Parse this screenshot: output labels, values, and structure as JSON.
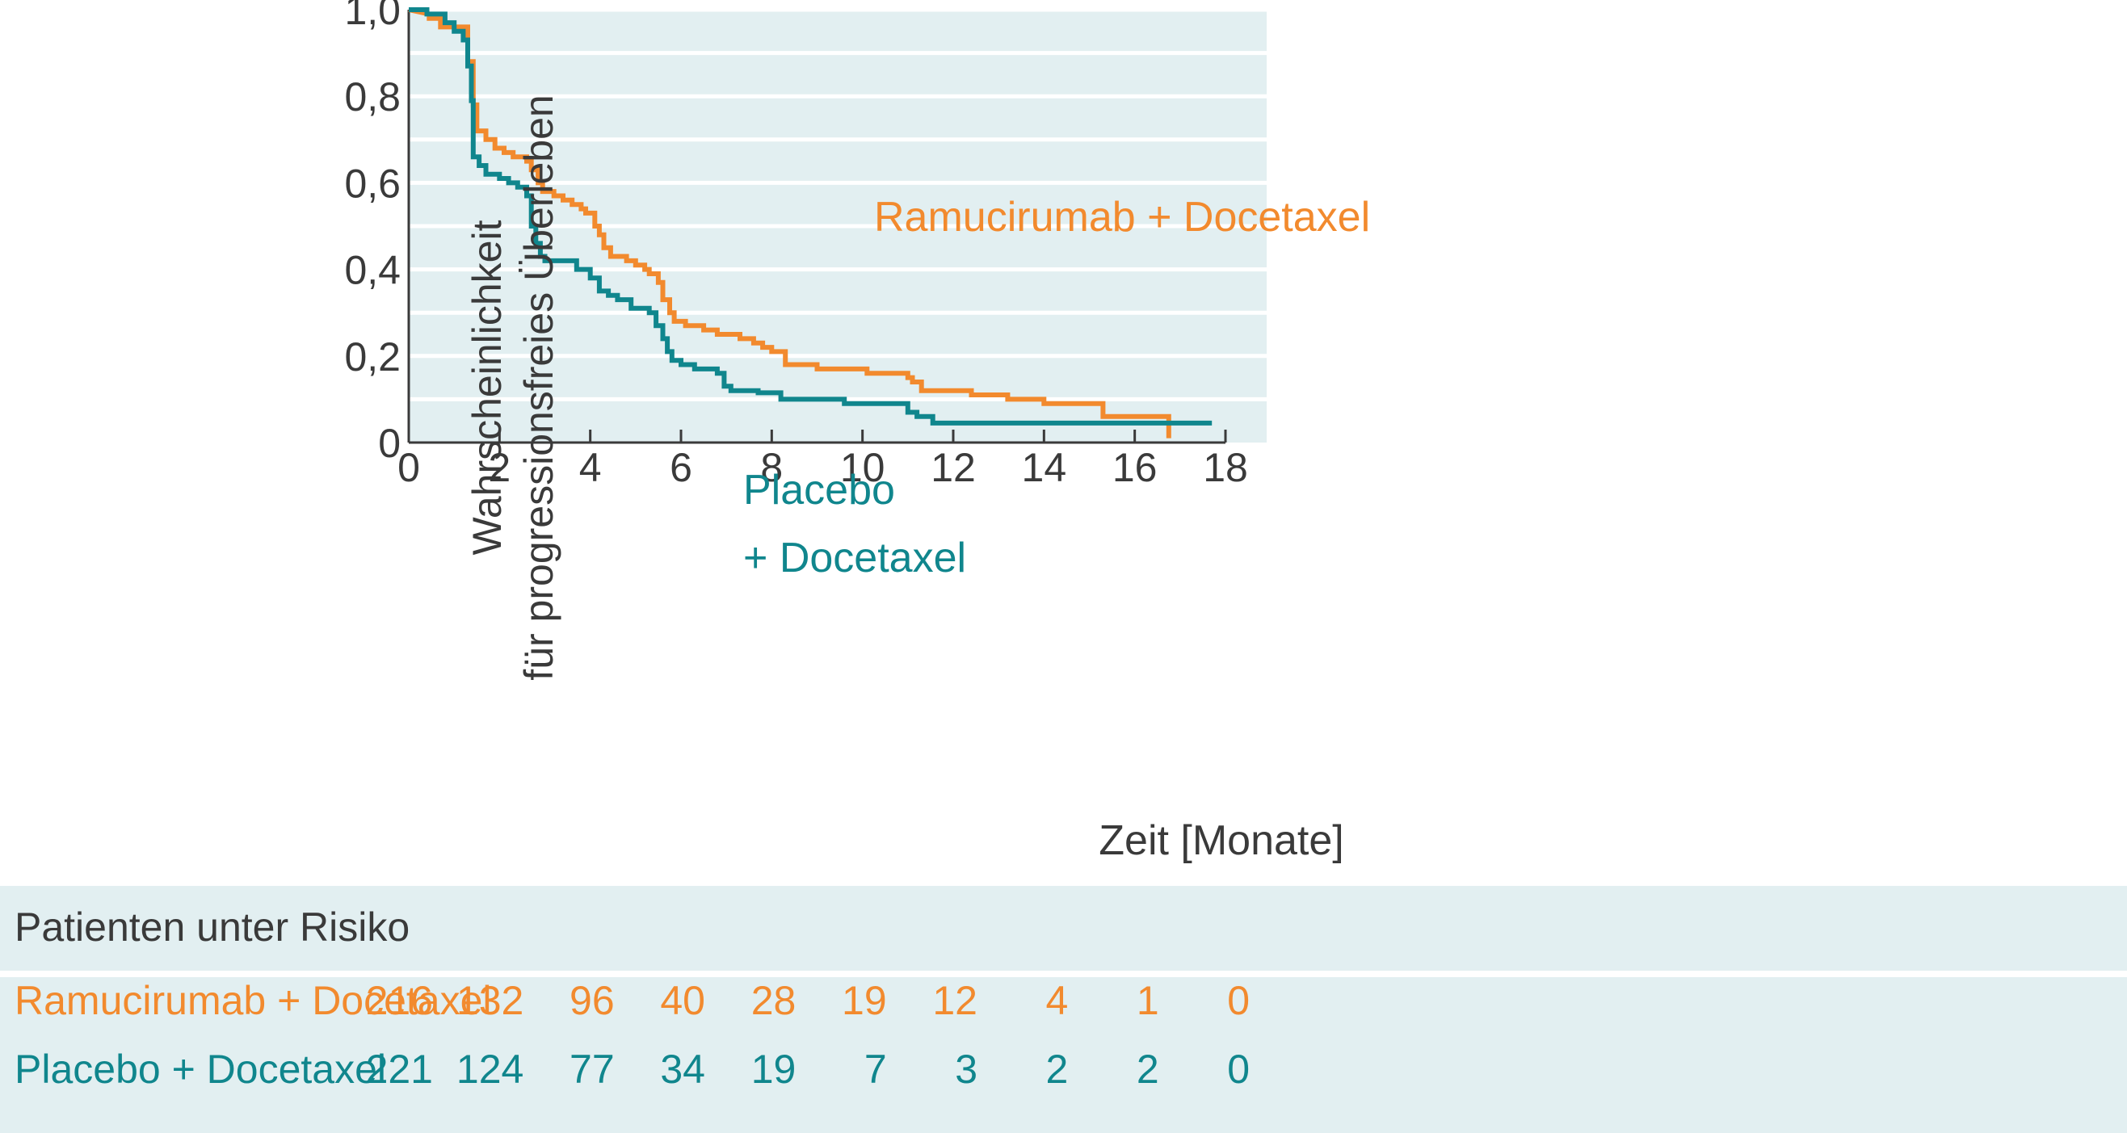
{
  "chart_data": {
    "type": "line",
    "subtype": "kaplan-meier step",
    "title": "",
    "xlabel": "Zeit [Monate]",
    "ylabel_lines": [
      "Wahrscheinlichkeit",
      "für progressionsfreies Überleben"
    ],
    "xlim": [
      0,
      18
    ],
    "ylim": [
      0,
      1.0
    ],
    "x_ticks": [
      0,
      2,
      4,
      6,
      8,
      10,
      12,
      14,
      16,
      18
    ],
    "y_ticks": [
      0,
      0.2,
      0.4,
      0.6,
      0.8,
      1.0
    ],
    "y_tick_labels": [
      "0",
      "0,2",
      "0,4",
      "0,6",
      "0,8",
      "1,0"
    ],
    "grid": "horizontal",
    "colors": {
      "ramucirumab": "#f28a2e",
      "placebo": "#10868d",
      "plot_background": "#e2eff1",
      "grid": "#ffffff",
      "text": "#3a3a3a"
    },
    "series": [
      {
        "name": "Ramucirumab + Docetaxel",
        "label_lines": [
          "Ramucirumab + Docetaxel"
        ],
        "color": "#f28a2e",
        "points": [
          [
            0,
            1.0
          ],
          [
            0.45,
            0.99
          ],
          [
            0.45,
            0.98
          ],
          [
            0.7,
            0.98
          ],
          [
            0.7,
            0.96
          ],
          [
            1.3,
            0.96
          ],
          [
            1.3,
            0.88
          ],
          [
            1.42,
            0.88
          ],
          [
            1.42,
            0.78
          ],
          [
            1.5,
            0.78
          ],
          [
            1.5,
            0.72
          ],
          [
            1.7,
            0.72
          ],
          [
            1.7,
            0.7
          ],
          [
            1.9,
            0.7
          ],
          [
            1.9,
            0.68
          ],
          [
            2.1,
            0.68
          ],
          [
            2.1,
            0.67
          ],
          [
            2.3,
            0.67
          ],
          [
            2.3,
            0.66
          ],
          [
            2.6,
            0.66
          ],
          [
            2.6,
            0.65
          ],
          [
            2.7,
            0.65
          ],
          [
            2.7,
            0.63
          ],
          [
            2.85,
            0.63
          ],
          [
            2.85,
            0.6
          ],
          [
            2.95,
            0.6
          ],
          [
            2.95,
            0.58
          ],
          [
            3.2,
            0.58
          ],
          [
            3.2,
            0.57
          ],
          [
            3.4,
            0.57
          ],
          [
            3.4,
            0.56
          ],
          [
            3.6,
            0.56
          ],
          [
            3.6,
            0.55
          ],
          [
            3.8,
            0.55
          ],
          [
            3.8,
            0.54
          ],
          [
            3.9,
            0.54
          ],
          [
            3.9,
            0.53
          ],
          [
            4.1,
            0.53
          ],
          [
            4.1,
            0.5
          ],
          [
            4.2,
            0.5
          ],
          [
            4.2,
            0.48
          ],
          [
            4.3,
            0.48
          ],
          [
            4.3,
            0.45
          ],
          [
            4.45,
            0.45
          ],
          [
            4.45,
            0.43
          ],
          [
            4.8,
            0.43
          ],
          [
            4.8,
            0.42
          ],
          [
            5.0,
            0.42
          ],
          [
            5.0,
            0.41
          ],
          [
            5.2,
            0.41
          ],
          [
            5.2,
            0.4
          ],
          [
            5.3,
            0.4
          ],
          [
            5.3,
            0.39
          ],
          [
            5.5,
            0.39
          ],
          [
            5.5,
            0.37
          ],
          [
            5.6,
            0.37
          ],
          [
            5.6,
            0.33
          ],
          [
            5.75,
            0.33
          ],
          [
            5.75,
            0.3
          ],
          [
            5.85,
            0.3
          ],
          [
            5.85,
            0.28
          ],
          [
            6.1,
            0.28
          ],
          [
            6.1,
            0.27
          ],
          [
            6.5,
            0.27
          ],
          [
            6.5,
            0.26
          ],
          [
            6.8,
            0.26
          ],
          [
            6.8,
            0.25
          ],
          [
            7.3,
            0.25
          ],
          [
            7.3,
            0.24
          ],
          [
            7.6,
            0.24
          ],
          [
            7.6,
            0.23
          ],
          [
            7.8,
            0.23
          ],
          [
            7.8,
            0.22
          ],
          [
            8.0,
            0.22
          ],
          [
            8.0,
            0.21
          ],
          [
            8.3,
            0.21
          ],
          [
            8.3,
            0.18
          ],
          [
            9.0,
            0.18
          ],
          [
            9.0,
            0.17
          ],
          [
            10.1,
            0.17
          ],
          [
            10.1,
            0.16
          ],
          [
            11.0,
            0.16
          ],
          [
            11.0,
            0.15
          ],
          [
            11.1,
            0.15
          ],
          [
            11.1,
            0.14
          ],
          [
            11.3,
            0.14
          ],
          [
            11.3,
            0.12
          ],
          [
            12.4,
            0.12
          ],
          [
            12.4,
            0.11
          ],
          [
            13.2,
            0.11
          ],
          [
            13.2,
            0.1
          ],
          [
            14.0,
            0.1
          ],
          [
            14.0,
            0.09
          ],
          [
            15.3,
            0.09
          ],
          [
            15.3,
            0.06
          ],
          [
            16.75,
            0.06
          ],
          [
            16.75,
            0.01
          ]
        ]
      },
      {
        "name": "Placebo + Docetaxel",
        "label_lines": [
          "Placebo",
          "+ Docetaxel"
        ],
        "color": "#10868d",
        "points": [
          [
            0,
            1.0
          ],
          [
            0.4,
            1.0
          ],
          [
            0.4,
            0.99
          ],
          [
            0.8,
            0.99
          ],
          [
            0.8,
            0.97
          ],
          [
            1.0,
            0.97
          ],
          [
            1.0,
            0.95
          ],
          [
            1.2,
            0.95
          ],
          [
            1.2,
            0.93
          ],
          [
            1.3,
            0.93
          ],
          [
            1.3,
            0.87
          ],
          [
            1.38,
            0.87
          ],
          [
            1.38,
            0.79
          ],
          [
            1.42,
            0.79
          ],
          [
            1.42,
            0.66
          ],
          [
            1.55,
            0.66
          ],
          [
            1.55,
            0.64
          ],
          [
            1.7,
            0.64
          ],
          [
            1.7,
            0.62
          ],
          [
            2.0,
            0.62
          ],
          [
            2.0,
            0.61
          ],
          [
            2.2,
            0.61
          ],
          [
            2.2,
            0.6
          ],
          [
            2.4,
            0.6
          ],
          [
            2.4,
            0.59
          ],
          [
            2.6,
            0.59
          ],
          [
            2.6,
            0.57
          ],
          [
            2.7,
            0.57
          ],
          [
            2.7,
            0.5
          ],
          [
            2.8,
            0.5
          ],
          [
            2.8,
            0.46
          ],
          [
            2.9,
            0.46
          ],
          [
            2.9,
            0.43
          ],
          [
            3.0,
            0.43
          ],
          [
            3.0,
            0.42
          ],
          [
            3.7,
            0.42
          ],
          [
            3.7,
            0.4
          ],
          [
            4.0,
            0.4
          ],
          [
            4.0,
            0.38
          ],
          [
            4.2,
            0.38
          ],
          [
            4.2,
            0.35
          ],
          [
            4.4,
            0.35
          ],
          [
            4.4,
            0.34
          ],
          [
            4.6,
            0.34
          ],
          [
            4.6,
            0.33
          ],
          [
            4.9,
            0.33
          ],
          [
            4.9,
            0.31
          ],
          [
            5.3,
            0.31
          ],
          [
            5.3,
            0.3
          ],
          [
            5.45,
            0.3
          ],
          [
            5.45,
            0.27
          ],
          [
            5.6,
            0.27
          ],
          [
            5.6,
            0.24
          ],
          [
            5.7,
            0.24
          ],
          [
            5.7,
            0.21
          ],
          [
            5.8,
            0.21
          ],
          [
            5.8,
            0.19
          ],
          [
            6.0,
            0.19
          ],
          [
            6.0,
            0.18
          ],
          [
            6.3,
            0.18
          ],
          [
            6.3,
            0.17
          ],
          [
            6.8,
            0.17
          ],
          [
            6.8,
            0.16
          ],
          [
            6.95,
            0.16
          ],
          [
            6.95,
            0.13
          ],
          [
            7.1,
            0.13
          ],
          [
            7.1,
            0.12
          ],
          [
            7.7,
            0.12
          ],
          [
            7.7,
            0.115
          ],
          [
            8.2,
            0.115
          ],
          [
            8.2,
            0.1
          ],
          [
            9.6,
            0.1
          ],
          [
            9.6,
            0.09
          ],
          [
            11.0,
            0.09
          ],
          [
            11.0,
            0.07
          ],
          [
            11.2,
            0.07
          ],
          [
            11.2,
            0.06
          ],
          [
            11.55,
            0.06
          ],
          [
            11.55,
            0.045
          ],
          [
            17.7,
            0.045
          ]
        ]
      }
    ]
  },
  "risk_table": {
    "title": "Patienten unter Risiko",
    "rows": [
      {
        "label": "Ramucirumab + Docetaxel",
        "color": "#f28a2e",
        "values": [
          "216",
          "132",
          "96",
          "40",
          "28",
          "19",
          "12",
          "4",
          "1",
          "0"
        ]
      },
      {
        "label": "Placebo + Docetaxel",
        "color": "#10868d",
        "values": [
          "221",
          "124",
          "77",
          "34",
          "19",
          "7",
          "3",
          "2",
          "2",
          "0"
        ]
      }
    ]
  }
}
